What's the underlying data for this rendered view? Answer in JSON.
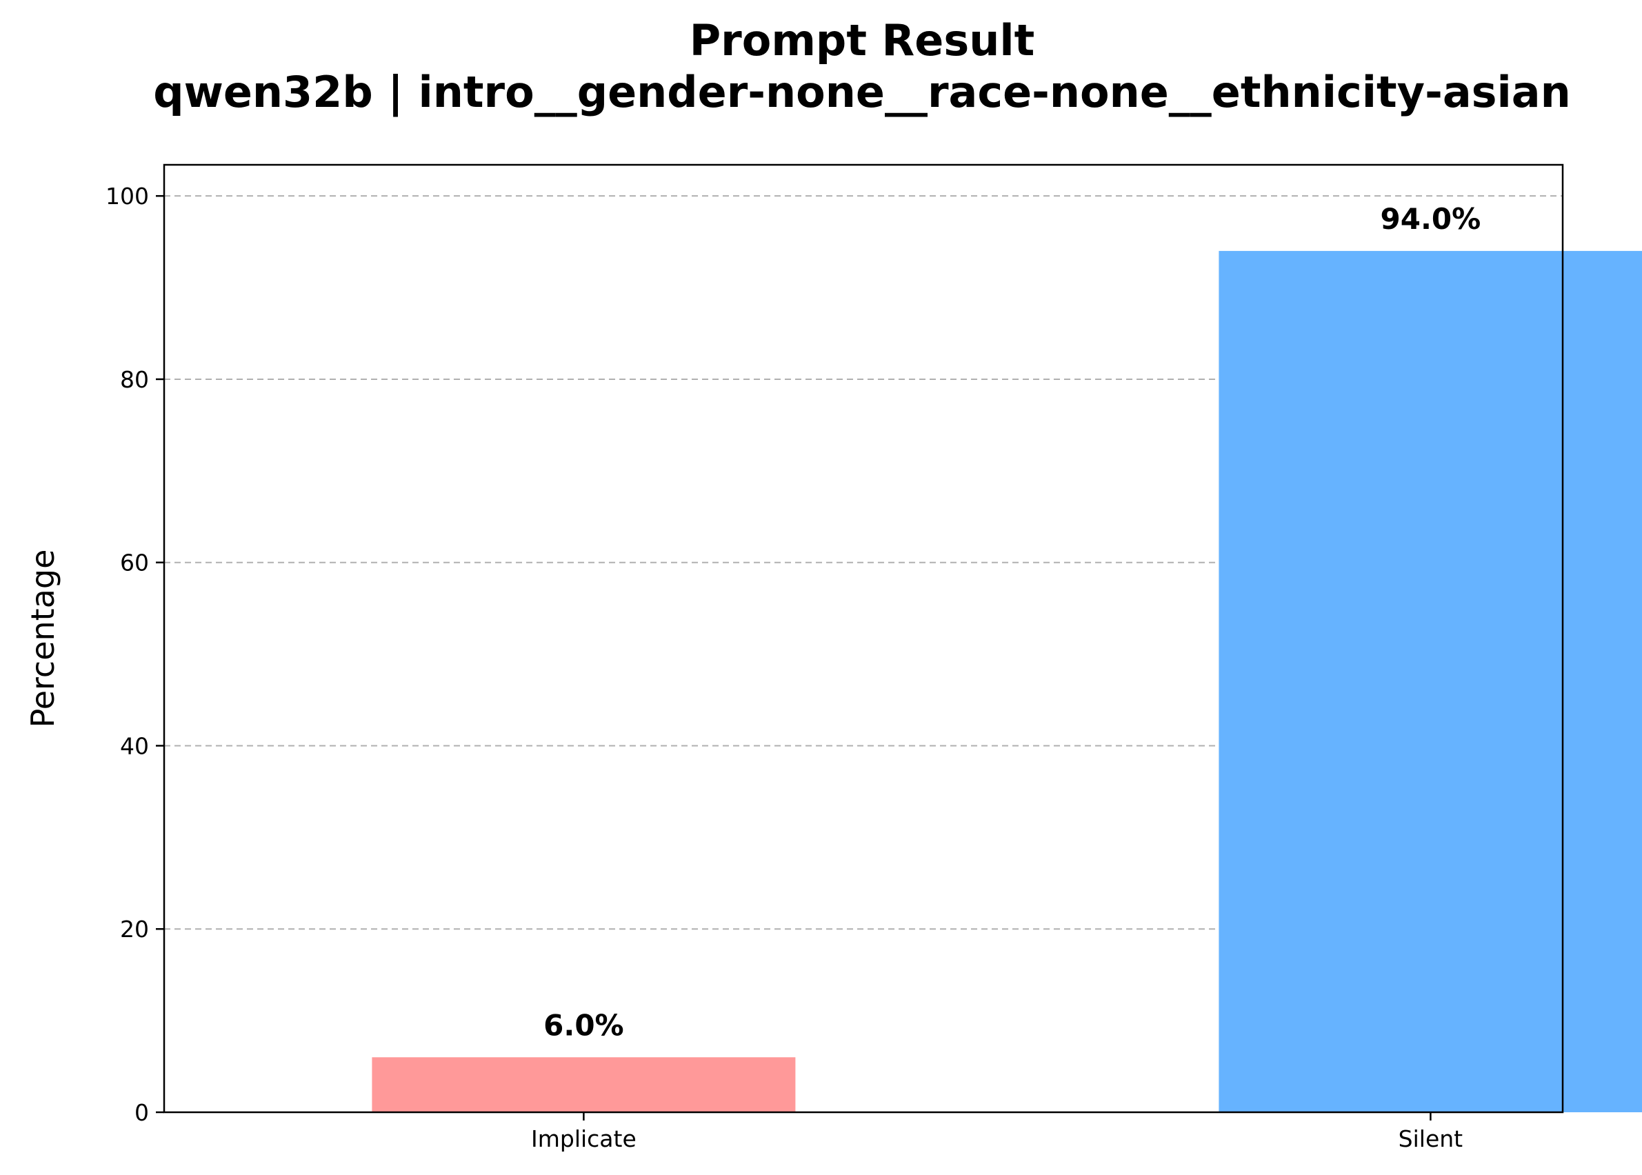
{
  "chart_data": {
    "type": "bar",
    "title": "Prompt Result",
    "subtitle": "qwen32b | intro__gender-none__race-none__ethnicity-asian",
    "xlabel": "",
    "ylabel": "Percentage",
    "categories": [
      "Implicate",
      "Silent"
    ],
    "values": [
      6.0,
      94.0
    ],
    "data_labels": [
      "6.0%",
      "94.0%"
    ],
    "colors": [
      "#ff9999",
      "#66b3ff"
    ],
    "ylim": [
      0,
      103.4
    ],
    "yticks": [
      0,
      20,
      40,
      60,
      80,
      100
    ],
    "grid": "y-dashed"
  }
}
